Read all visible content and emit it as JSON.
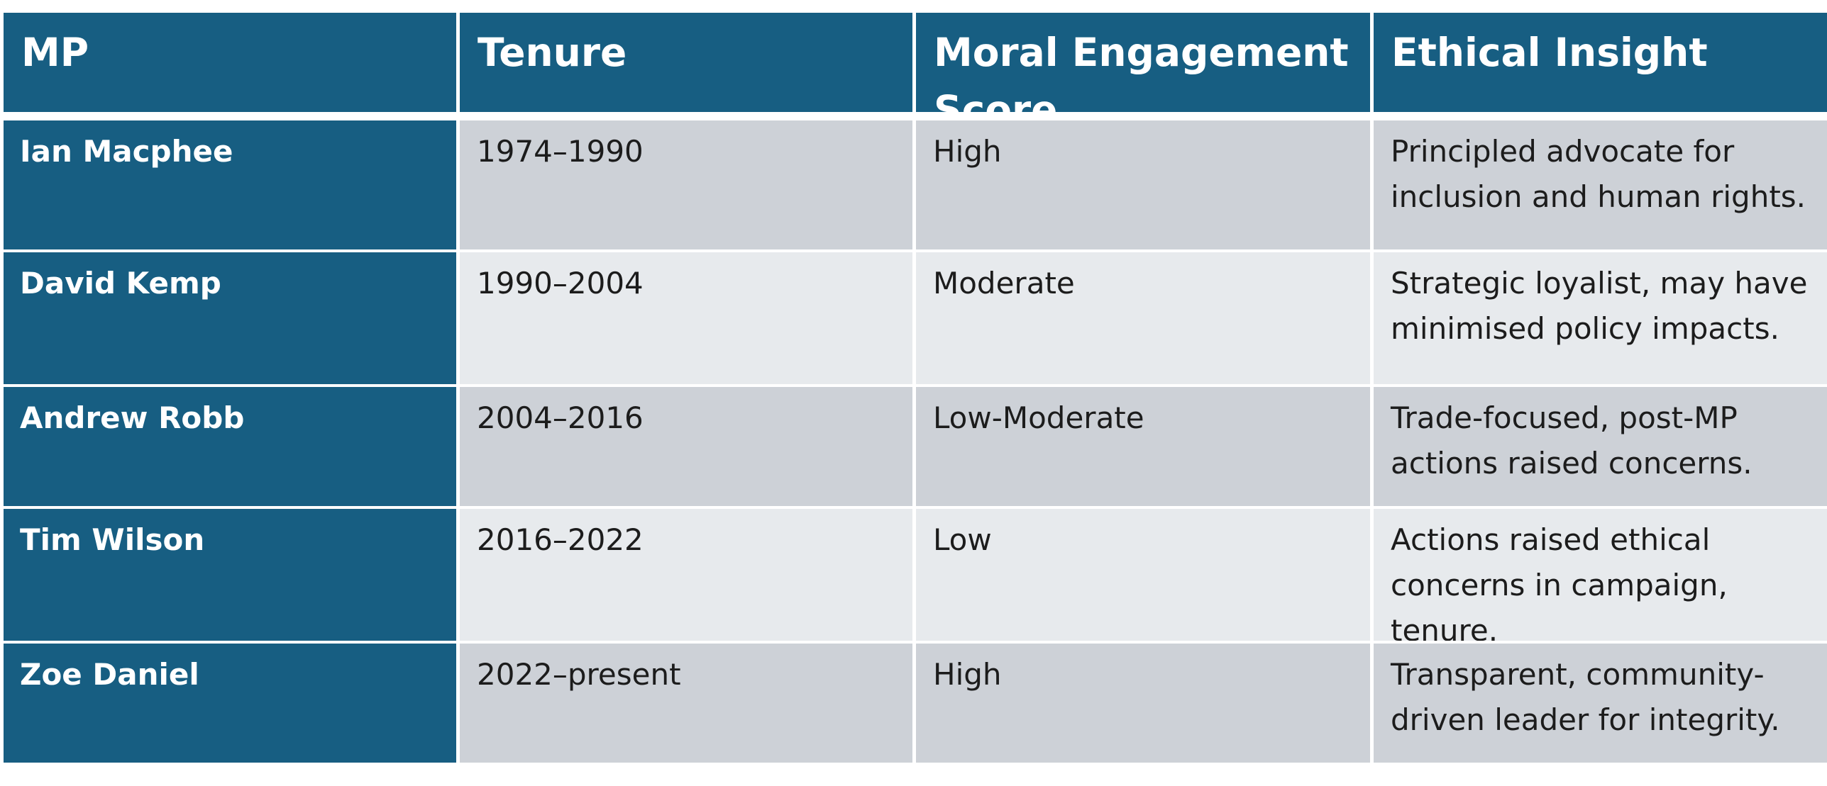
{
  "table": {
    "headers": {
      "mp": "MP",
      "tenure": "Tenure",
      "score": "Moral Engagement Score",
      "insight": "Ethical Insight"
    },
    "rows": [
      {
        "mp": "Ian Macphee",
        "tenure": "1974–1990",
        "score": "High",
        "insight": "Principled advocate for inclusion and human rights."
      },
      {
        "mp": "David Kemp",
        "tenure": "1990–2004",
        "score": "Moderate",
        "insight": "Strategic loyalist, may have minimised policy impacts."
      },
      {
        "mp": "Andrew Robb",
        "tenure": "2004–2016",
        "score": "Low-Moderate",
        "insight": "Trade-focused, post-MP actions raised concerns."
      },
      {
        "mp": "Tim Wilson",
        "tenure": "2016–2022",
        "score": "Low",
        "insight": "Actions raised ethical concerns in campaign, tenure."
      },
      {
        "mp": "Zoe Daniel",
        "tenure": "2022–present",
        "score": "High",
        "insight": "Transparent, community-driven leader for integrity."
      }
    ]
  },
  "colors": {
    "header_bg": "#175e82",
    "row_odd": "#cdd1d7",
    "row_even": "#e7eaed"
  }
}
